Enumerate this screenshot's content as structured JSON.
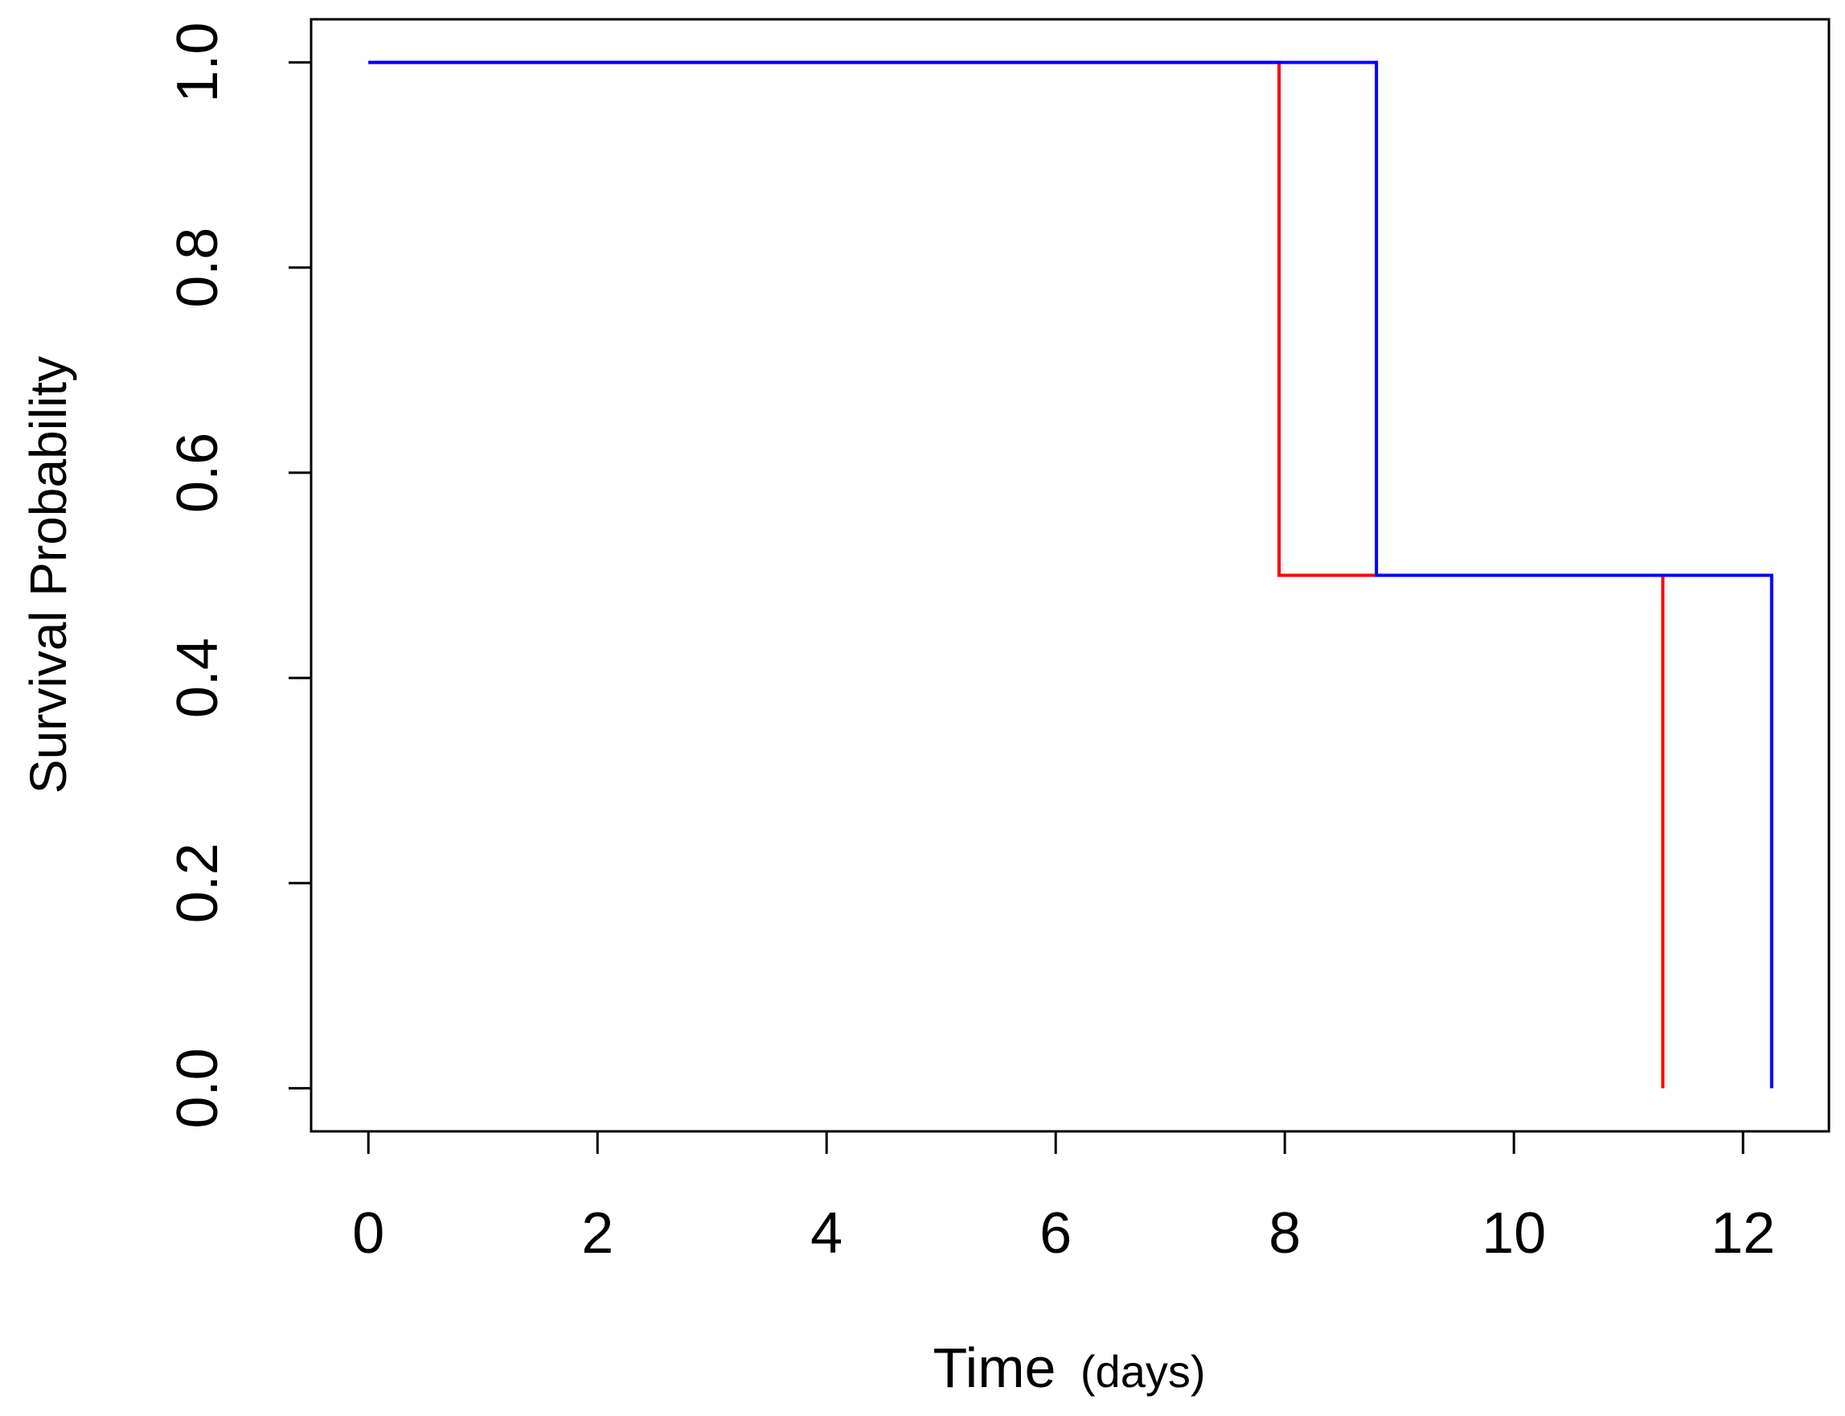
{
  "chart_data": {
    "type": "line",
    "title": "",
    "xlabel": "Time",
    "xlabel_unit": "(days)",
    "ylabel": "Survival Probability",
    "xlim": [
      -0.5,
      12.75
    ],
    "ylim": [
      -0.042,
      1.042
    ],
    "x_ticks": [
      0,
      2,
      4,
      6,
      8,
      10,
      12
    ],
    "x_tick_labels": [
      "0",
      "2",
      "4",
      "6",
      "8",
      "10",
      "12"
    ],
    "y_ticks": [
      0,
      0.2,
      0.4,
      0.6,
      0.8,
      1
    ],
    "y_tick_labels": [
      "0.0",
      "0.2",
      "0.4",
      "0.6",
      "0.8",
      "1.0"
    ],
    "grid": false,
    "legend": false,
    "step": true,
    "series": [
      {
        "color": "#ff0000",
        "x": [
          0,
          7.95,
          11.3
        ],
        "y": [
          1.0,
          0.5,
          0.0
        ]
      },
      {
        "color": "#0000ff",
        "x": [
          0,
          8.8,
          12.25
        ],
        "y": [
          1.0,
          0.5,
          0.0
        ]
      }
    ]
  }
}
